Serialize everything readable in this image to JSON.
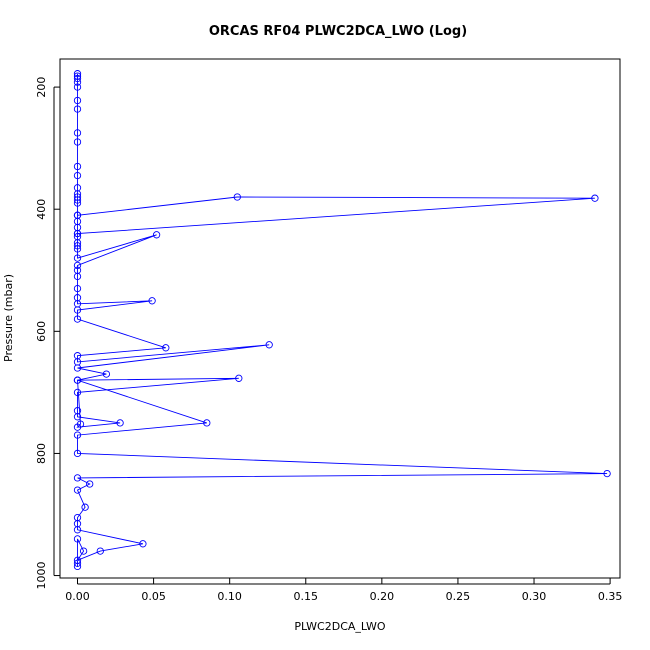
{
  "chart_data": {
    "type": "line",
    "title": "ORCAS RF04 PLWC2DCA_LWO (Log)",
    "xlabel": "PLWC2DCA_LWO",
    "ylabel": "Pressure (mbar)",
    "xlim": [
      -0.0115,
      0.3565
    ],
    "ylim": [
      1004,
      154
    ],
    "y_reversed": true,
    "grid": false,
    "xticks": [
      0.0,
      0.05,
      0.1,
      0.15,
      0.2,
      0.25,
      0.3,
      0.35
    ],
    "xtick_labels": [
      "0.00",
      "0.05",
      "0.10",
      "0.15",
      "0.20",
      "0.25",
      "0.30",
      "0.35"
    ],
    "yticks": [
      200,
      400,
      600,
      800,
      1000
    ],
    "ytick_labels": [
      "200",
      "400",
      "600",
      "800",
      "1000"
    ],
    "series_color": "#0000ff",
    "series": [
      {
        "x": [
          0,
          0,
          0,
          0,
          0,
          0,
          0,
          0,
          0,
          0,
          0,
          0,
          0,
          0,
          0,
          0,
          0,
          0,
          0,
          0,
          0,
          0,
          0,
          0,
          0.105,
          0.34,
          0,
          0,
          0,
          0.052,
          0,
          0,
          0,
          0,
          0,
          0,
          0.049,
          0,
          0,
          0.058,
          0,
          0,
          0.126,
          0,
          0.019,
          0,
          0.106,
          0,
          0,
          0,
          0.028,
          0,
          0.002,
          0,
          0.085,
          0,
          0,
          0.348,
          0,
          0.008,
          0,
          0.005,
          0,
          0,
          0,
          0.043,
          0.015,
          0,
          0.004,
          0,
          0,
          0
        ],
        "y": [
          178,
          182,
          186,
          192,
          200,
          222,
          236,
          275,
          290,
          330,
          345,
          365,
          375,
          380,
          385,
          390,
          410,
          420,
          430,
          440,
          445,
          455,
          460,
          410,
          380,
          382,
          440,
          465,
          480,
          442,
          492,
          500,
          510,
          530,
          545,
          555,
          550,
          565,
          580,
          627,
          640,
          650,
          622,
          660,
          670,
          680,
          677,
          700,
          730,
          740,
          750,
          757,
          752,
          680,
          750,
          770,
          800,
          833,
          840,
          850,
          860,
          888,
          905,
          915,
          925,
          948,
          960,
          975,
          960,
          940,
          980,
          985
        ]
      }
    ]
  }
}
